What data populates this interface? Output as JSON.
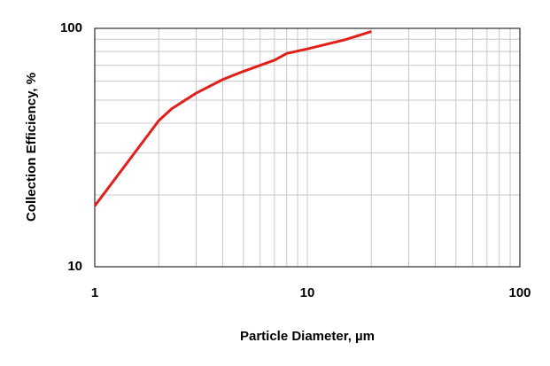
{
  "chart_data": {
    "type": "line",
    "x_label": "Particle Diameter, µm",
    "y_label": "Collection Efficiency, %",
    "x": [
      1,
      2,
      2.3,
      3,
      4,
      5,
      6,
      7,
      7.5,
      8,
      10,
      15,
      20
    ],
    "series": [
      {
        "name": "Collection Efficiency",
        "color": "#e0201b",
        "values": [
          18,
          41,
          46,
          53.5,
          61,
          66,
          70,
          73.5,
          76,
          78.5,
          82,
          89.5,
          97
        ]
      }
    ],
    "xlim": [
      1,
      100
    ],
    "ylim": [
      10,
      100
    ],
    "xticks": [
      1,
      10,
      100
    ],
    "yticks": [
      10,
      100
    ],
    "xlog": true,
    "ylog": true,
    "grid": true
  }
}
